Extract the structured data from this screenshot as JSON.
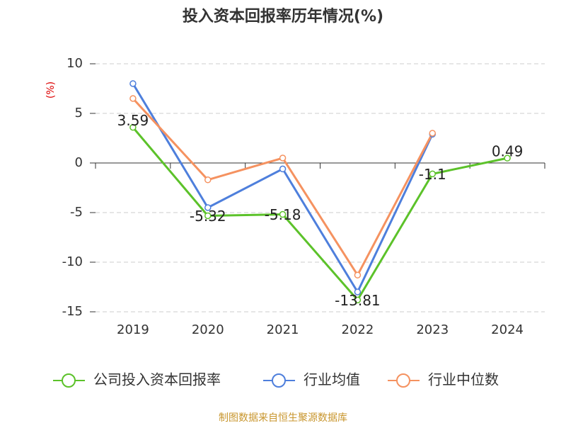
{
  "chart_data": {
    "type": "line",
    "title": "投入资本回报率历年情况(%)",
    "y_label": "(%)",
    "categories": [
      "2019",
      "2020",
      "2021",
      "2022",
      "2023",
      "2024"
    ],
    "series": [
      {
        "name": "公司投入资本回报率",
        "color": "#5cc22a",
        "values": [
          3.59,
          -5.32,
          -5.18,
          -13.81,
          -1.1,
          0.49
        ],
        "labels": true
      },
      {
        "name": "行业均值",
        "color": "#4e7fdc",
        "values": [
          8.0,
          -4.5,
          -0.6,
          -13.0,
          2.9,
          null
        ]
      },
      {
        "name": "行业中位数",
        "color": "#f59260",
        "values": [
          6.5,
          -1.7,
          0.5,
          -11.3,
          3.0,
          null
        ]
      }
    ],
    "ylim": [
      -15,
      10
    ],
    "yticks": [
      -15,
      -10,
      -5,
      0,
      5,
      10
    ],
    "grid": true,
    "source": "制图数据来自恒生聚源数据库"
  }
}
